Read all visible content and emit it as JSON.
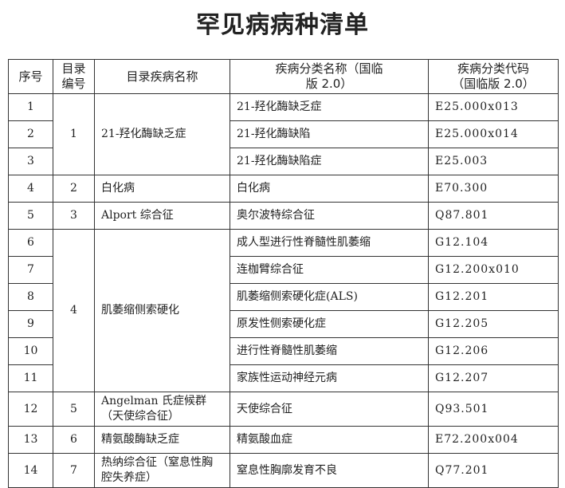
{
  "title": "罕见病病种清单",
  "headers": {
    "seq": "序号",
    "cat_no": "目录编号",
    "cat_name": "目录疾病名称",
    "disease": "疾病分类名称（国临版 2.0）",
    "code": "疾病分类代码（国临版 2.0）"
  },
  "groups": [
    {
      "cat_no": "1",
      "cat_name": "21-羟化酶缺乏症"
    },
    {
      "cat_no": "2",
      "cat_name": "白化病"
    },
    {
      "cat_no": "3",
      "cat_name": "Alport 综合征"
    },
    {
      "cat_no": "4",
      "cat_name": "肌萎缩侧索硬化"
    },
    {
      "cat_no": "5",
      "cat_name": "Angelman 氏症候群（天使综合征）"
    },
    {
      "cat_no": "6",
      "cat_name": "精氨酸酶缺乏症"
    },
    {
      "cat_no": "7",
      "cat_name": "热纳综合征（窒息性胸腔失养症）"
    }
  ],
  "rows": [
    {
      "seq": "1",
      "disease": "21-羟化酶缺乏症",
      "code": "E25.000x013"
    },
    {
      "seq": "2",
      "disease": "21-羟化酶缺陷",
      "code": "E25.000x014"
    },
    {
      "seq": "3",
      "disease": "21-羟化酶缺陷症",
      "code": "E25.003"
    },
    {
      "seq": "4",
      "disease": "白化病",
      "code": "E70.300"
    },
    {
      "seq": "5",
      "disease": "奥尔波特综合征",
      "code": "Q87.801"
    },
    {
      "seq": "6",
      "disease": "成人型进行性脊髓性肌萎缩",
      "code": "G12.104"
    },
    {
      "seq": "7",
      "disease": "连枷臂综合征",
      "code": "G12.200x010"
    },
    {
      "seq": "8",
      "disease": "肌萎缩侧索硬化症(ALS)",
      "code": "G12.201"
    },
    {
      "seq": "9",
      "disease": "原发性侧索硬化症",
      "code": "G12.205"
    },
    {
      "seq": "10",
      "disease": "进行性脊髓性肌萎缩",
      "code": "G12.206"
    },
    {
      "seq": "11",
      "disease": "家族性运动神经元病",
      "code": "G12.207"
    },
    {
      "seq": "12",
      "disease": "天使综合征",
      "code": "Q93.501"
    },
    {
      "seq": "13",
      "disease": "精氨酸血症",
      "code": "E72.200x004"
    },
    {
      "seq": "14",
      "disease": "窒息性胸廓发育不良",
      "code": "Q77.201"
    }
  ]
}
